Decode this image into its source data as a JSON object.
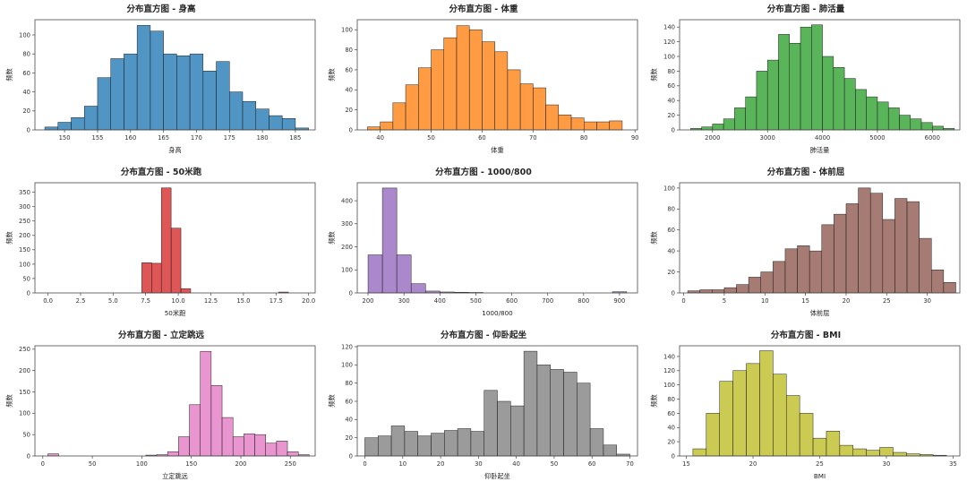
{
  "page": {
    "background": "#ffffff"
  },
  "chart_data": [
    {
      "type": "bar",
      "title": "分布直方图 - 身高",
      "xlabel": "身高",
      "ylabel": "频数",
      "color": "#1f77b4",
      "bin_start": 147,
      "bin_width": 2,
      "values": [
        3,
        8,
        13,
        25,
        55,
        75,
        80,
        110,
        104,
        80,
        78,
        80,
        62,
        72,
        40,
        30,
        22,
        15,
        12,
        2
      ],
      "xlim": [
        145.5,
        188
      ],
      "ylim": [
        0,
        116
      ],
      "xticks": [
        150,
        155,
        160,
        165,
        170,
        175,
        180,
        185
      ],
      "xtick_labels": [
        "150",
        "155",
        "160",
        "165",
        "170",
        "175",
        "180",
        "185"
      ],
      "yticks": [
        0,
        20,
        40,
        60,
        80,
        100
      ]
    },
    {
      "type": "bar",
      "title": "分布直方图 - 体重",
      "xlabel": "体重",
      "ylabel": "频数",
      "color": "#ff7f0e",
      "bin_start": 37.5,
      "bin_width": 2.5,
      "values": [
        3,
        8,
        27,
        45,
        62,
        80,
        92,
        104,
        100,
        88,
        78,
        60,
        46,
        42,
        25,
        15,
        12,
        8,
        8,
        9
      ],
      "xlim": [
        35.5,
        90.5
      ],
      "ylim": [
        0,
        110
      ],
      "xticks": [
        40,
        50,
        60,
        70,
        80,
        90
      ],
      "xtick_labels": [
        "40",
        "50",
        "60",
        "70",
        "80",
        "90"
      ],
      "yticks": [
        0,
        20,
        40,
        60,
        80,
        100
      ]
    },
    {
      "type": "bar",
      "title": "分布直方图 - 肺活量",
      "xlabel": "肺活量",
      "ylabel": "频数",
      "color": "#2ca02c",
      "bin_start": 1600,
      "bin_width": 200,
      "values": [
        2,
        4,
        8,
        15,
        30,
        45,
        80,
        95,
        130,
        118,
        140,
        143,
        100,
        85,
        70,
        55,
        45,
        38,
        30,
        20,
        15,
        10,
        5,
        2
      ],
      "xlim": [
        1400,
        6500
      ],
      "ylim": [
        0,
        150
      ],
      "xticks": [
        2000,
        3000,
        4000,
        5000,
        6000
      ],
      "xtick_labels": [
        "2000",
        "3000",
        "4000",
        "5000",
        "6000"
      ],
      "yticks": [
        0,
        20,
        40,
        60,
        80,
        100,
        120,
        140
      ]
    },
    {
      "type": "bar",
      "title": "分布直方图 - 50米跑",
      "xlabel": "50米跑",
      "ylabel": "频数",
      "color": "#d62728",
      "bin_start": 7.2,
      "bin_width": 0.75,
      "values": [
        105,
        103,
        365,
        225,
        15,
        0,
        0,
        0,
        0,
        0,
        0,
        0,
        0,
        0,
        3
      ],
      "xlim": [
        -1,
        20.5
      ],
      "ylim": [
        0,
        383
      ],
      "xticks": [
        0,
        2.5,
        5,
        7.5,
        10,
        12.5,
        15,
        17.5,
        20
      ],
      "xtick_labels": [
        "0.0",
        "2.5",
        "5.0",
        "7.5",
        "10.0",
        "12.5",
        "15.0",
        "17.5",
        "20.0"
      ],
      "yticks": [
        0,
        50,
        100,
        150,
        200,
        250,
        300,
        350
      ]
    },
    {
      "type": "bar",
      "title": "分布直方图 - 1000/800",
      "xlabel": "1000/800",
      "ylabel": "频数",
      "color": "#9467bd",
      "bin_start": 200,
      "bin_width": 40,
      "values": [
        165,
        455,
        165,
        40,
        8,
        4,
        3,
        2,
        0,
        0,
        0,
        0,
        0,
        0,
        0,
        0,
        0,
        5
      ],
      "xlim": [
        170,
        950
      ],
      "ylim": [
        0,
        478
      ],
      "xticks": [
        200,
        300,
        400,
        500,
        600,
        700,
        800,
        900
      ],
      "xtick_labels": [
        "200",
        "300",
        "400",
        "500",
        "600",
        "700",
        "800",
        "900"
      ],
      "yticks": [
        0,
        100,
        200,
        300,
        400
      ]
    },
    {
      "type": "bar",
      "title": "分布直方图 - 体前屈",
      "xlabel": "体前屈",
      "ylabel": "频数",
      "color": "#8c564b",
      "bin_start": 0.5,
      "bin_width": 1.5,
      "values": [
        2,
        3,
        3,
        5,
        8,
        15,
        20,
        30,
        42,
        45,
        40,
        65,
        75,
        85,
        100,
        95,
        70,
        90,
        87,
        52,
        22,
        10
      ],
      "xlim": [
        -0.5,
        34
      ],
      "ylim": [
        0,
        105
      ],
      "xticks": [
        0,
        5,
        10,
        15,
        20,
        25,
        30
      ],
      "xtick_labels": [
        "0",
        "5",
        "10",
        "15",
        "20",
        "25",
        "30"
      ],
      "yticks": [
        0,
        20,
        40,
        60,
        80,
        100
      ]
    },
    {
      "type": "bar",
      "title": "分布直方图 - 立定跳远",
      "xlabel": "立定跳远",
      "ylabel": "频数",
      "color": "#e377c2",
      "bin_start": 5,
      "bin_width": 11,
      "values": [
        5,
        0,
        0,
        0,
        0,
        0,
        0,
        0,
        0,
        2,
        3,
        10,
        45,
        120,
        245,
        165,
        90,
        45,
        52,
        50,
        30,
        35,
        10,
        3
      ],
      "xlim": [
        -8,
        275
      ],
      "ylim": [
        0,
        258
      ],
      "xticks": [
        0,
        50,
        100,
        150,
        200,
        250
      ],
      "xtick_labels": [
        "0",
        "50",
        "100",
        "150",
        "200",
        "250"
      ],
      "yticks": [
        0,
        50,
        100,
        150,
        200,
        250
      ]
    },
    {
      "type": "bar",
      "title": "分布直方图 - 仰卧起坐",
      "xlabel": "仰卧起坐",
      "ylabel": "频数",
      "color": "#7f7f7f",
      "bin_start": 0,
      "bin_width": 3.5,
      "values": [
        20,
        22,
        33,
        27,
        22,
        25,
        28,
        30,
        27,
        72,
        60,
        55,
        115,
        100,
        95,
        92,
        80,
        30,
        12,
        2
      ],
      "xlim": [
        -2,
        72
      ],
      "ylim": [
        0,
        121
      ],
      "xticks": [
        0,
        10,
        20,
        30,
        40,
        50,
        60,
        70
      ],
      "xtick_labels": [
        "0",
        "10",
        "20",
        "30",
        "40",
        "50",
        "60",
        "70"
      ],
      "yticks": [
        0,
        20,
        40,
        60,
        80,
        100,
        120
      ]
    },
    {
      "type": "bar",
      "title": "分布直方图 - BMI",
      "xlabel": "BMI",
      "ylabel": "频数",
      "color": "#bcbd22",
      "bin_start": 15.5,
      "bin_width": 1,
      "values": [
        10,
        60,
        105,
        120,
        130,
        148,
        115,
        85,
        60,
        25,
        35,
        15,
        10,
        8,
        12,
        5,
        3,
        2,
        1
      ],
      "xlim": [
        14.5,
        35.5
      ],
      "ylim": [
        0,
        155
      ],
      "xticks": [
        15,
        20,
        25,
        30,
        35
      ],
      "xtick_labels": [
        "15",
        "20",
        "25",
        "30",
        "35"
      ],
      "yticks": [
        0,
        20,
        40,
        60,
        80,
        100,
        120,
        140
      ]
    }
  ]
}
